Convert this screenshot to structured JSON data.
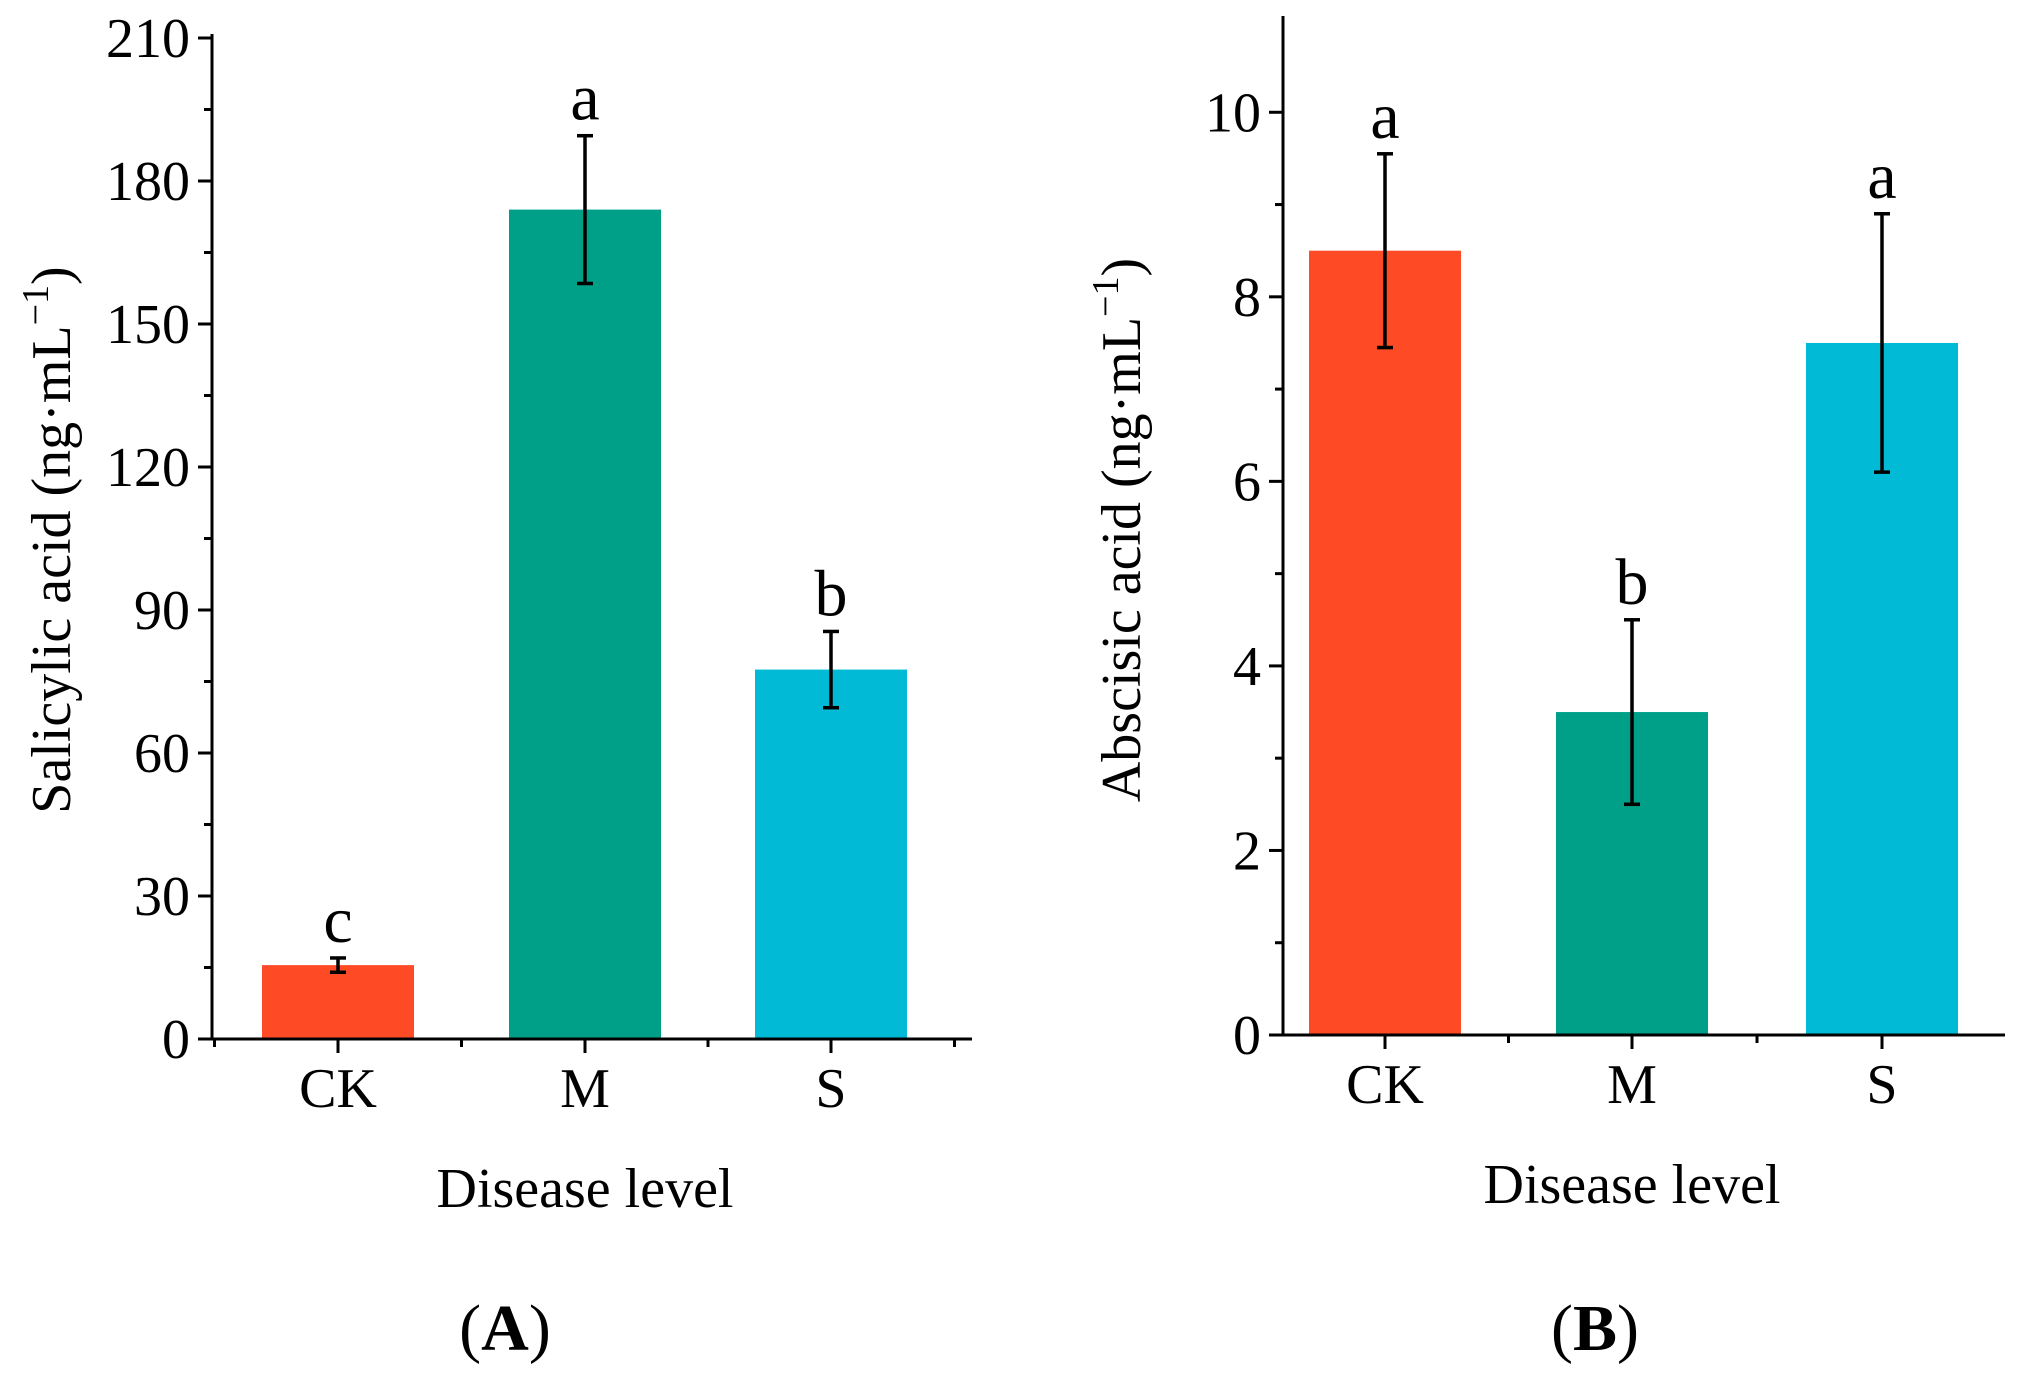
{
  "figure": {
    "panel_labels": [
      {
        "open": "(",
        "letter": "A",
        "close": ")"
      },
      {
        "open": "(",
        "letter": "B",
        "close": ")"
      }
    ]
  },
  "colors": {
    "CK": "#FF4A26",
    "M": "#00A088",
    "S": "#00BAD6"
  },
  "chart_data": [
    {
      "type": "bar",
      "panel": "A",
      "title": "",
      "categories": [
        "CK",
        "M",
        "S"
      ],
      "values": [
        15.5,
        174,
        77.5
      ],
      "errors": [
        1.5,
        15.5,
        8
      ],
      "significance": [
        "c",
        "a",
        "b"
      ],
      "xlabel": "Disease level",
      "ylabel": {
        "main": "Salicylic acid (ng·mL",
        "sup": "−1",
        "close": ")"
      },
      "ylim": [
        0,
        210
      ],
      "yticks": [
        0,
        30,
        60,
        90,
        120,
        150,
        180,
        210
      ],
      "ytick_labels": [
        "0",
        "30",
        "60",
        "90",
        "120",
        "150",
        "180",
        "210"
      ],
      "grid": false
    },
    {
      "type": "bar",
      "panel": "B",
      "title": "",
      "categories": [
        "CK",
        "M",
        "S"
      ],
      "values": [
        8.5,
        3.5,
        7.5
      ],
      "errors": [
        1.05,
        1.0,
        1.4
      ],
      "significance": [
        "a",
        "b",
        "a"
      ],
      "xlabel": "Disease level",
      "ylabel": {
        "main": "Abscisic acid (ng·mL",
        "sup": "−1",
        "close": ")"
      },
      "ylim": [
        0,
        11
      ],
      "yticks": [
        0,
        2,
        4,
        6,
        8,
        10
      ],
      "ytick_labels": [
        "0",
        "2",
        "4",
        "6",
        "8",
        "10"
      ],
      "grid": false
    }
  ]
}
